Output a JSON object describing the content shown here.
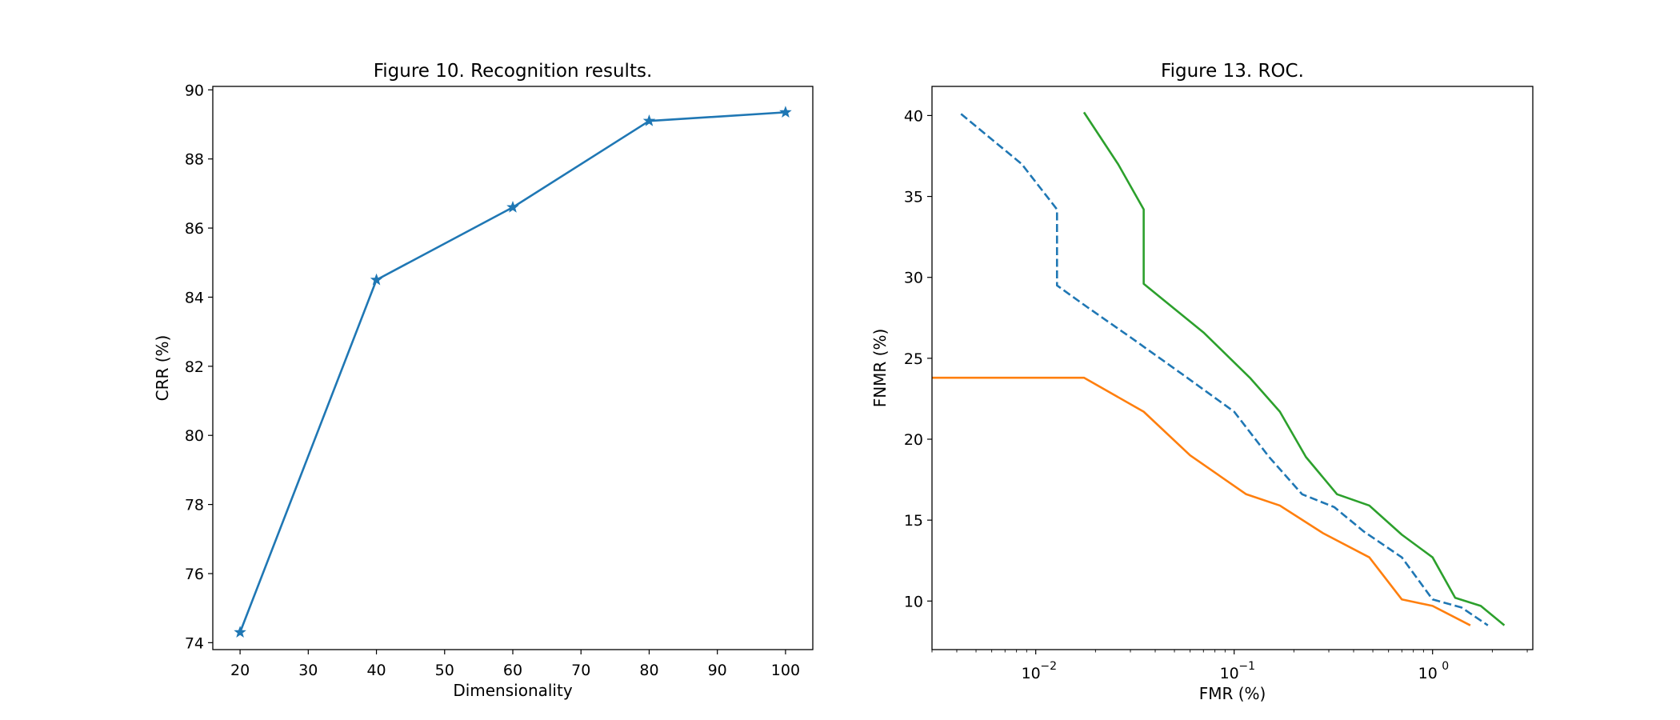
{
  "chart_data": [
    {
      "type": "line",
      "title": "Figure 10. Recognition results.",
      "xlabel": "Dimensionality",
      "ylabel": "CRR (%)",
      "xlim": [
        16,
        104
      ],
      "ylim": [
        73.8,
        90.1
      ],
      "xticks": [
        20,
        30,
        40,
        50,
        60,
        70,
        80,
        90,
        100
      ],
      "yticks": [
        74,
        76,
        78,
        80,
        82,
        84,
        86,
        88,
        90
      ],
      "grid": false,
      "series": [
        {
          "color": "#1f77b4",
          "linestyle": "solid",
          "marker": "star",
          "x": [
            20,
            40,
            60,
            80,
            100
          ],
          "y": [
            74.3,
            84.5,
            86.6,
            89.1,
            89.35
          ]
        }
      ]
    },
    {
      "type": "line",
      "title": "Figure 13. ROC.",
      "xlabel": "FMR (%)",
      "ylabel": "FNMR (%)",
      "xscale": "log",
      "xlim": [
        0.003,
        3.2
      ],
      "ylim": [
        7,
        41.8
      ],
      "xticks": [
        0.01,
        0.1,
        1
      ],
      "xtick_labels": [
        "10",
        "10",
        "10"
      ],
      "xtick_exponents": [
        "−2",
        "−1",
        "0"
      ],
      "yticks": [
        10,
        15,
        20,
        25,
        30,
        35,
        40
      ],
      "grid": false,
      "series": [
        {
          "color": "#1f77b4",
          "linestyle": "dashed",
          "x": [
            0.0042,
            0.0085,
            0.0128,
            0.0128,
            0.018,
            0.03,
            0.055,
            0.1,
            0.15,
            0.22,
            0.32,
            0.45,
            0.7,
            1.0,
            1.4,
            1.9
          ],
          "y": [
            40.1,
            37,
            34.2,
            29.5,
            28.2,
            26.3,
            24.0,
            21.7,
            18.9,
            16.6,
            15.8,
            14.3,
            12.7,
            10.1,
            9.6,
            8.5
          ]
        },
        {
          "color": "#ff7f0e",
          "linestyle": "solid",
          "x": [
            0.003,
            0.0175,
            0.035,
            0.06,
            0.115,
            0.17,
            0.28,
            0.48,
            0.7,
            1.0,
            1.55
          ],
          "y": [
            23.8,
            23.8,
            21.7,
            19.0,
            16.6,
            15.9,
            14.2,
            12.7,
            10.1,
            9.7,
            8.5
          ]
        },
        {
          "color": "#2ca02c",
          "linestyle": "solid",
          "x": [
            0.0175,
            0.026,
            0.035,
            0.035,
            0.07,
            0.12,
            0.17,
            0.23,
            0.33,
            0.48,
            0.7,
            1.0,
            1.3,
            1.75,
            2.3
          ],
          "y": [
            40.2,
            37,
            34.2,
            29.6,
            26.6,
            23.8,
            21.7,
            18.9,
            16.6,
            15.9,
            14.1,
            12.7,
            10.2,
            9.7,
            8.5
          ]
        }
      ]
    }
  ]
}
